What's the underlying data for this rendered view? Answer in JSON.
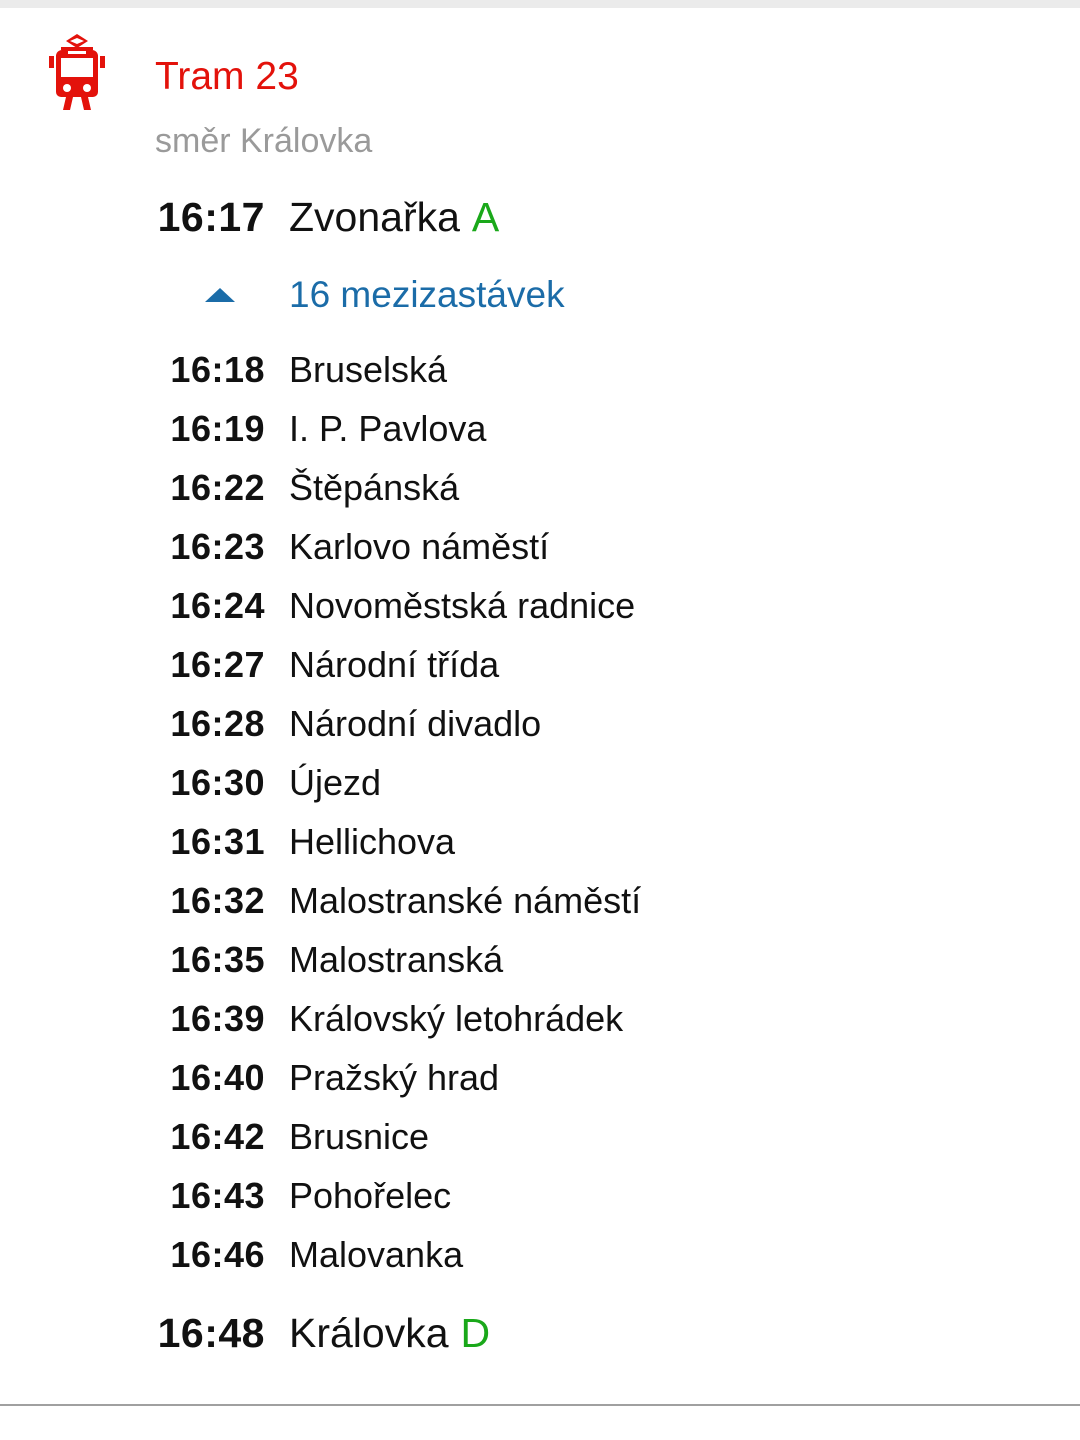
{
  "colors": {
    "brand": "#e3120b",
    "platform": "#1aa81a",
    "link": "#1b6ca8",
    "muted": "#9a9a9a"
  },
  "header": {
    "icon": "tram-icon",
    "title": "Tram 23",
    "direction": "směr Královka"
  },
  "departure": {
    "time": "16:17",
    "stop": "Zvonařka",
    "platform": "A"
  },
  "intermediate": {
    "label": "16 mezizastávek",
    "expanded": true,
    "icon": "chevron-up-icon",
    "stops": [
      {
        "time": "16:18",
        "stop": "Bruselská"
      },
      {
        "time": "16:19",
        "stop": "I. P. Pavlova"
      },
      {
        "time": "16:22",
        "stop": "Štěpánská"
      },
      {
        "time": "16:23",
        "stop": "Karlovo náměstí"
      },
      {
        "time": "16:24",
        "stop": "Novoměstská radnice"
      },
      {
        "time": "16:27",
        "stop": "Národní třída"
      },
      {
        "time": "16:28",
        "stop": "Národní divadlo"
      },
      {
        "time": "16:30",
        "stop": "Újezd"
      },
      {
        "time": "16:31",
        "stop": "Hellichova"
      },
      {
        "time": "16:32",
        "stop": "Malostranské náměstí"
      },
      {
        "time": "16:35",
        "stop": "Malostranská"
      },
      {
        "time": "16:39",
        "stop": "Královský letohrádek"
      },
      {
        "time": "16:40",
        "stop": "Pražský hrad"
      },
      {
        "time": "16:42",
        "stop": "Brusnice"
      },
      {
        "time": "16:43",
        "stop": "Pohořelec"
      },
      {
        "time": "16:46",
        "stop": "Malovanka"
      }
    ]
  },
  "arrival": {
    "time": "16:48",
    "stop": "Královka",
    "platform": "D"
  }
}
